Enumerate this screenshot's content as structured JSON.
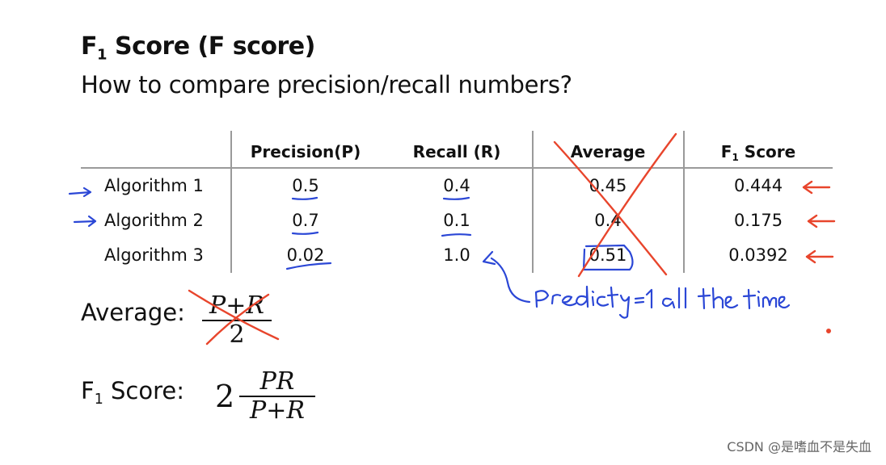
{
  "slide": {
    "title_main": "F",
    "title_sub": "1",
    "title_rest": " Score (F score)",
    "subtitle": "How to compare precision/recall numbers?"
  },
  "table": {
    "headers": {
      "precision": "Precision(P)",
      "recall": "Recall (R)",
      "average": "Average",
      "f1_main": "F",
      "f1_sub": "1",
      "f1_rest": " Score"
    },
    "rows": [
      {
        "name": "Algorithm 1",
        "precision": "0.5",
        "recall": "0.4",
        "average": "0.45",
        "f1": "0.444"
      },
      {
        "name": "Algorithm 2",
        "precision": "0.7",
        "recall": "0.1",
        "average": "0.4",
        "f1": "0.175"
      },
      {
        "name": "Algorithm 3",
        "precision": "0.02",
        "recall": "1.0",
        "average": "0.51",
        "f1": "0.0392"
      }
    ]
  },
  "annotation": {
    "note": "Predict y=1 all the time",
    "ink_blue": "#2b47d6",
    "ink_red": "#e8452c"
  },
  "formulas": {
    "average_label": "Average:",
    "average_num": "P+R",
    "average_den": "2",
    "f1_label_main": "F",
    "f1_label_sub": "1",
    "f1_label_rest": " Score:",
    "f1_coef": "2",
    "f1_num": "PR",
    "f1_den": "P+R"
  },
  "watermark": "CSDN @是嗜血不是失血"
}
